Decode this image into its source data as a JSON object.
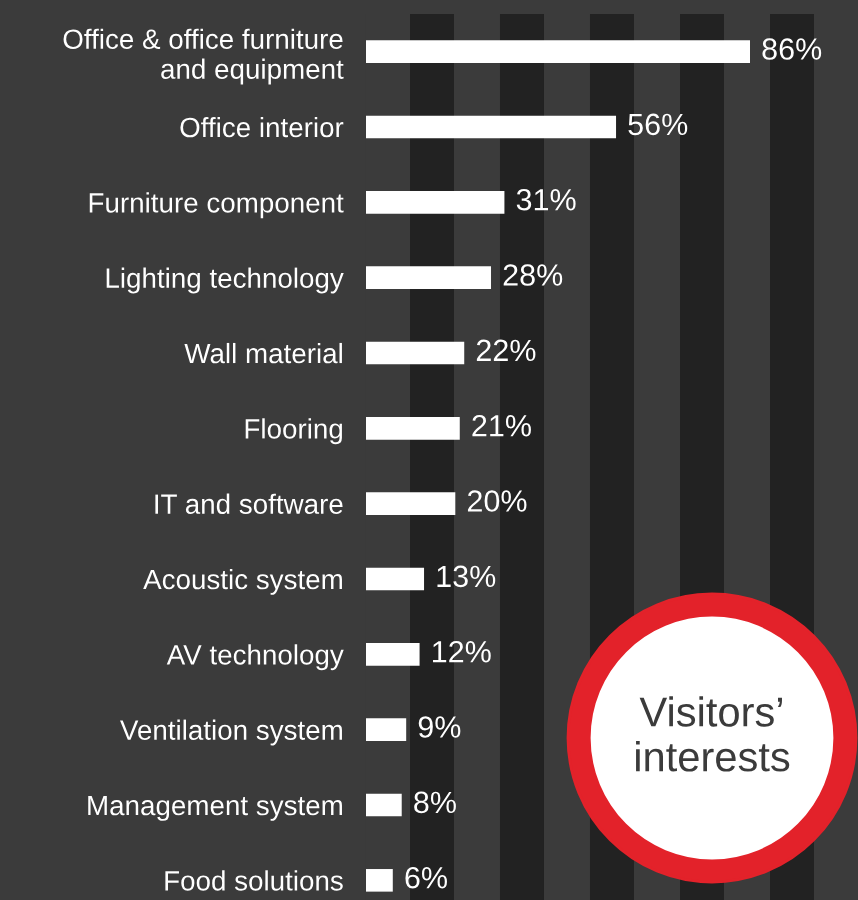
{
  "chart_data": {
    "type": "bar",
    "orientation": "horizontal",
    "title": "Visitors’ interests",
    "categories": [
      "Office & office furniture\nand equipment",
      "Office interior",
      "Furniture component",
      "Lighting technology",
      "Wall material",
      "Flooring",
      "IT and software",
      "Acoustic system",
      "AV technology",
      "Ventilation system",
      "Management system",
      "Food solutions"
    ],
    "values": [
      86,
      56,
      31,
      28,
      22,
      21,
      20,
      13,
      12,
      9,
      8,
      6
    ],
    "value_labels": [
      "86%",
      "56%",
      "31%",
      "28%",
      "22%",
      "21%",
      "20%",
      "13%",
      "12%",
      "9%",
      "8%",
      "6%"
    ],
    "color": "#ffffff",
    "grid": false,
    "tick_labels": "y"
  }
}
